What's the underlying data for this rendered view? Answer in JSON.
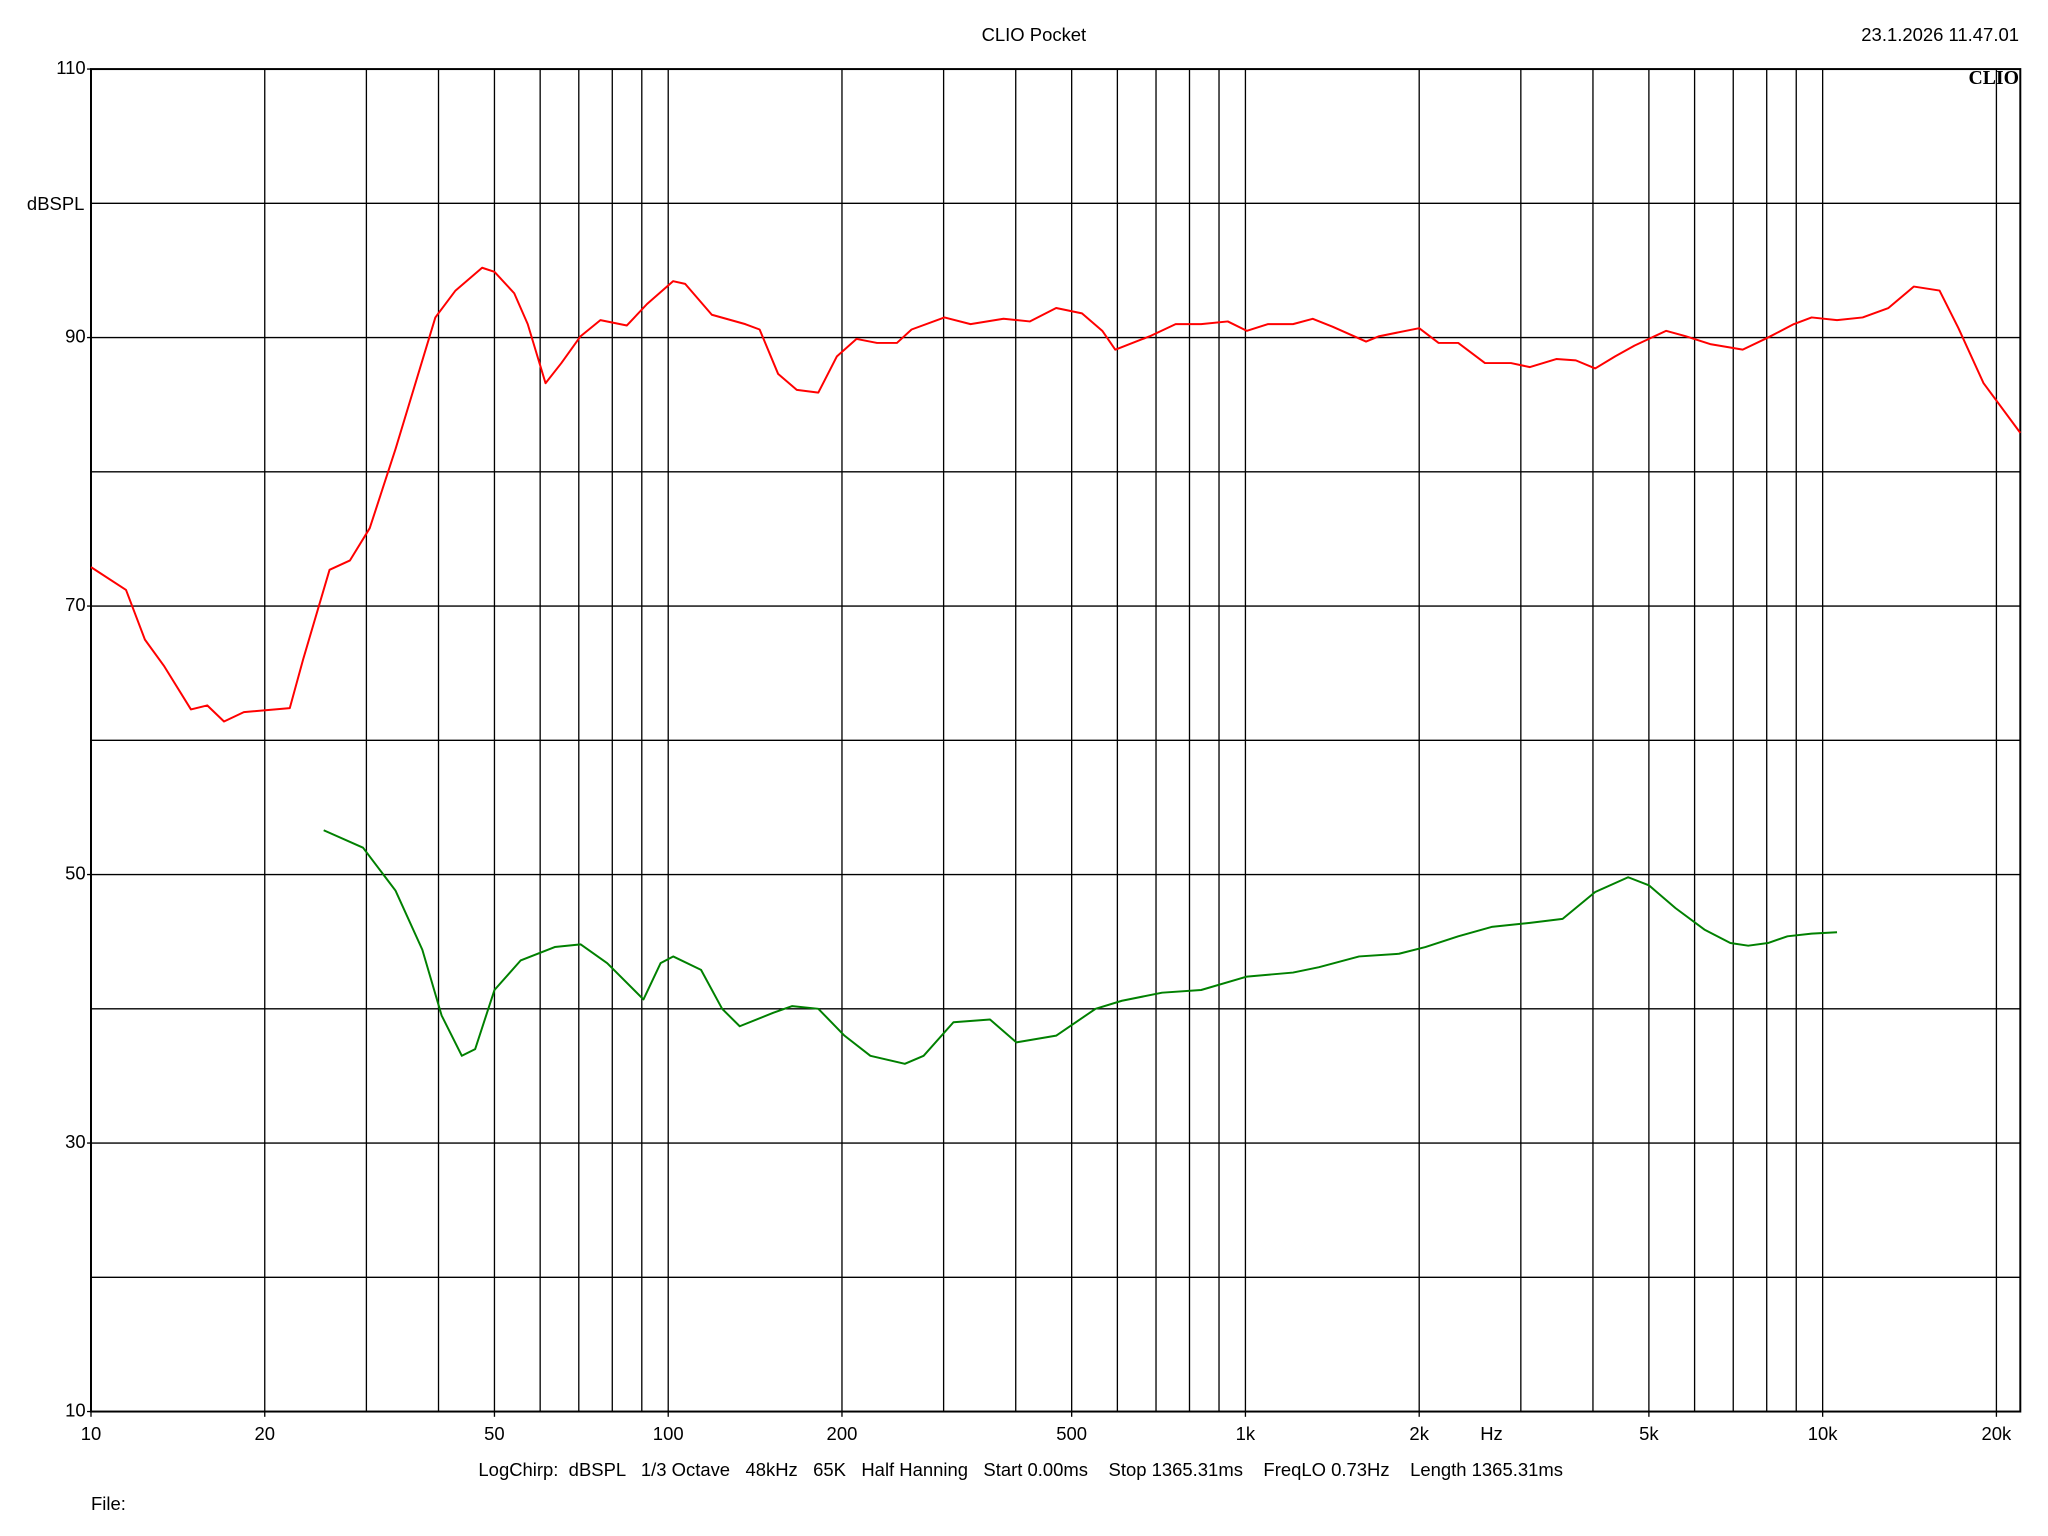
{
  "chart_data": {
    "type": "line",
    "title": "CLIO Pocket",
    "timestamp": "23.1.2026 11.47.01",
    "logo": "CLIO",
    "ylabel": "dBSPL",
    "xlabel": "Hz",
    "footer": "LogChirp:  dBSPL   1/3 Octave   48kHz   65K   Half Hanning   Start 0.00ms    Stop 1365.31ms    FreqLO 0.73Hz    Length 1365.31ms",
    "file_label": "File:",
    "xscale": "log",
    "xlim": [
      10,
      22000
    ],
    "ylim": [
      10,
      110
    ],
    "xticks": [
      10,
      20,
      50,
      100,
      200,
      500,
      {
        "value": 1000,
        "label": "1k"
      },
      {
        "value": 2000,
        "label": "2k"
      },
      {
        "value": 5000,
        "label": "5k"
      },
      {
        "value": 10000,
        "label": "10k"
      },
      {
        "value": 20000,
        "label": "20k"
      }
    ],
    "yticks": [
      10,
      30,
      50,
      70,
      90,
      110
    ],
    "xgrid": [
      20,
      30,
      40,
      50,
      60,
      70,
      80,
      90,
      100,
      200,
      300,
      400,
      500,
      600,
      700,
      800,
      900,
      1000,
      2000,
      3000,
      4000,
      5000,
      6000,
      7000,
      8000,
      9000,
      10000,
      20000
    ],
    "ygrid": [
      20,
      30,
      40,
      50,
      60,
      70,
      80,
      90,
      100
    ],
    "grid": true,
    "series": [
      {
        "color": "#ff0000",
        "x": [
          10,
          11.5,
          12.4,
          13.4,
          14.9,
          15.9,
          17,
          18.4,
          22.1,
          23.3,
          25.9,
          28.1,
          30.4,
          33.7,
          39.5,
          42.8,
          47.6,
          50,
          54.1,
          57.1,
          61.3,
          65.3,
          70.5,
          76.3,
          84.8,
          91.9,
          102,
          107,
          119,
          136,
          144,
          155,
          167,
          182,
          196,
          212,
          230,
          249,
          264,
          301,
          334,
          381,
          423,
          470,
          521,
          565,
          595,
          683,
          757,
          838,
          932,
          1006,
          1093,
          1209,
          1308,
          1417,
          1618,
          1705,
          2000,
          2161,
          2337,
          2600,
          2884,
          3111,
          3456,
          3736,
          4036,
          4370,
          4720,
          5354,
          5788,
          6404,
          7270,
          8040,
          8910,
          9570,
          10590,
          11730,
          13000,
          14390,
          15940,
          17190,
          19000,
          22000
        ],
        "values": [
          72.9,
          71.2,
          67.5,
          65.5,
          62.3,
          62.6,
          61.4,
          62.1,
          62.4,
          66,
          72.7,
          73.4,
          75.8,
          81.7,
          91.5,
          93.5,
          95.2,
          94.9,
          93.3,
          91,
          86.6,
          88.1,
          90.1,
          91.3,
          90.9,
          92.5,
          94.2,
          94,
          91.7,
          91,
          90.6,
          87.3,
          86.1,
          85.9,
          88.6,
          89.9,
          89.6,
          89.6,
          90.6,
          91.5,
          91,
          91.4,
          91.2,
          92.2,
          91.8,
          90.5,
          89.1,
          90.1,
          91,
          91,
          91.2,
          90.5,
          91,
          91,
          91.4,
          90.8,
          89.7,
          90.1,
          90.7,
          89.6,
          89.6,
          88.1,
          88.1,
          87.8,
          88.4,
          88.3,
          87.7,
          88.6,
          89.4,
          90.5,
          90.1,
          89.5,
          89.1,
          90,
          91,
          91.5,
          91.3,
          91.5,
          92.2,
          93.8,
          93.5,
          90.7,
          86.6,
          82.9
        ]
      },
      {
        "color": "#008000",
        "x": [
          25.3,
          29.6,
          33.7,
          37.5,
          40.5,
          43.9,
          46.3,
          50,
          55.5,
          63.6,
          70.5,
          78.4,
          90.6,
          97,
          102,
          114,
          124,
          133,
          152,
          164,
          182,
          202,
          224,
          257,
          277,
          312,
          361,
          401,
          470,
          550,
          611,
          717,
          838,
          1006,
          1209,
          1341,
          1574,
          1845,
          2050,
          2337,
          2670,
          3111,
          3544,
          4036,
          4603,
          5000,
          5560,
          6240,
          6920,
          7430,
          8040,
          8690,
          9570,
          10590
        ],
        "values": [
          53.3,
          52,
          48.8,
          44.4,
          39.5,
          36.5,
          37,
          41.4,
          43.6,
          44.6,
          44.8,
          43.4,
          40.7,
          43.4,
          43.9,
          42.9,
          40,
          38.7,
          39.7,
          40.2,
          40,
          38,
          36.5,
          35.9,
          36.5,
          39,
          39.2,
          37.5,
          38,
          40,
          40.6,
          41.2,
          41.4,
          42.4,
          42.7,
          43.1,
          43.9,
          44.1,
          44.6,
          45.4,
          46.1,
          46.4,
          46.7,
          48.7,
          49.8,
          49.2,
          47.5,
          45.9,
          44.9,
          44.7,
          44.9,
          45.4,
          45.6,
          45.7
        ]
      }
    ]
  }
}
